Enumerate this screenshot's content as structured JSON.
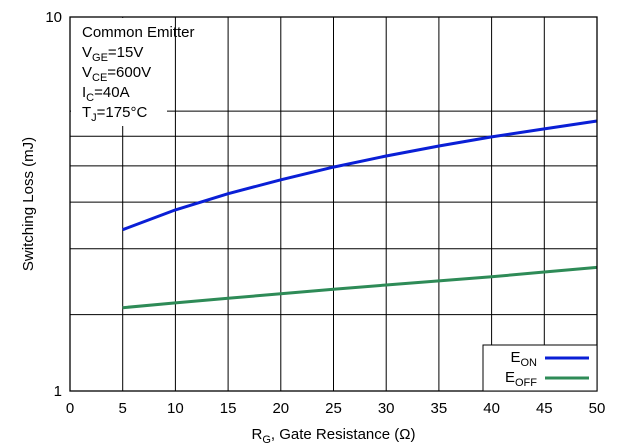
{
  "chart_data": {
    "type": "line",
    "xlabel": {
      "main": "R",
      "sub": "G",
      "rest": ", Gate Resistance (Ω)"
    },
    "ylabel": "Switching Loss (mJ)",
    "xlim": [
      0,
      50
    ],
    "ylim": [
      1,
      10
    ],
    "yscale": "log",
    "grid": true,
    "x_ticks": [
      0,
      5,
      10,
      15,
      20,
      25,
      30,
      35,
      40,
      45,
      50
    ],
    "y_tick_labels": [
      {
        "value": 1,
        "label": "1"
      },
      {
        "value": 10,
        "label": "10"
      }
    ],
    "y_gridlines": [
      1.6,
      2.4,
      3.2,
      4.0,
      4.8,
      5.6,
      10
    ],
    "annotations": [
      {
        "key": "common_emitter",
        "main": "Common Emitter",
        "sub": "",
        "rest": ""
      },
      {
        "key": "vge",
        "main": "V",
        "sub": "GE",
        "rest": "=15V"
      },
      {
        "key": "vce",
        "main": "V",
        "sub": "CE",
        "rest": "=600V"
      },
      {
        "key": "ic",
        "main": "I",
        "sub": "C",
        "rest": "=40A"
      },
      {
        "key": "tj",
        "main": "T",
        "sub": "J",
        "rest": "=175°C"
      }
    ],
    "legend_position": "bottom-right",
    "series": [
      {
        "name": "E_ON",
        "legend": {
          "main": "E",
          "sub": "ON"
        },
        "color": "#0a1fd6",
        "x": [
          5,
          10,
          15,
          20,
          25,
          30,
          35,
          40,
          45,
          50
        ],
        "y": [
          2.7,
          3.05,
          3.37,
          3.67,
          3.97,
          4.25,
          4.52,
          4.78,
          5.02,
          5.27
        ]
      },
      {
        "name": "E_OFF",
        "legend": {
          "main": "E",
          "sub": "OFF"
        },
        "color": "#2e8b57",
        "x": [
          5,
          10,
          15,
          20,
          25,
          30,
          35,
          40,
          45,
          50
        ],
        "y": [
          1.67,
          1.72,
          1.77,
          1.82,
          1.87,
          1.92,
          1.97,
          2.02,
          2.08,
          2.14
        ]
      }
    ]
  }
}
